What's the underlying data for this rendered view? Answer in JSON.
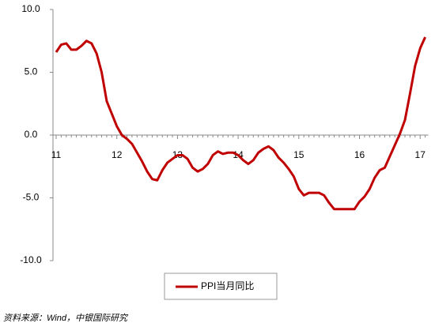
{
  "chart_data": {
    "type": "line",
    "categories": [
      "11",
      null,
      null,
      null,
      null,
      null,
      null,
      null,
      null,
      null,
      null,
      null,
      "12",
      null,
      null,
      null,
      null,
      null,
      null,
      null,
      null,
      null,
      null,
      null,
      "13",
      null,
      null,
      null,
      null,
      null,
      null,
      null,
      null,
      null,
      null,
      null,
      "14",
      null,
      null,
      null,
      null,
      null,
      null,
      null,
      null,
      null,
      null,
      null,
      "15",
      null,
      null,
      null,
      null,
      null,
      null,
      null,
      null,
      null,
      null,
      null,
      "16",
      null,
      null,
      null,
      null,
      null,
      null,
      null,
      null,
      null,
      null,
      null,
      "17",
      null
    ],
    "series": [
      {
        "name": "PPI当月同比",
        "color": "#c00000",
        "values": [
          6.6,
          7.2,
          7.3,
          6.8,
          6.8,
          7.1,
          7.5,
          7.3,
          6.5,
          5.0,
          2.7,
          1.7,
          0.7,
          0.0,
          -0.3,
          -0.7,
          -1.4,
          -2.1,
          -2.9,
          -3.5,
          -3.6,
          -2.8,
          -2.2,
          -1.9,
          -1.6,
          -1.6,
          -1.9,
          -2.6,
          -2.9,
          -2.7,
          -2.3,
          -1.6,
          -1.3,
          -1.5,
          -1.4,
          -1.4,
          -1.6,
          -2.0,
          -2.3,
          -2.0,
          -1.4,
          -1.1,
          -0.9,
          -1.2,
          -1.8,
          -2.2,
          -2.7,
          -3.3,
          -4.3,
          -4.8,
          -4.6,
          -4.6,
          -4.6,
          -4.8,
          -5.4,
          -5.9,
          -5.9,
          -5.9,
          -5.9,
          -5.9,
          -5.3,
          -4.9,
          -4.3,
          -3.4,
          -2.8,
          -2.6,
          -1.7,
          -0.8,
          0.1,
          1.2,
          3.3,
          5.5,
          6.9,
          7.8
        ]
      }
    ],
    "ylim": [
      -10,
      10
    ],
    "yticks": [
      {
        "value": 10,
        "label": "10.0"
      },
      {
        "value": 5,
        "label": "5.0"
      },
      {
        "value": 0,
        "label": "0.0"
      },
      {
        "value": -5,
        "label": "-5.0"
      },
      {
        "value": -10,
        "label": "-10.0"
      }
    ],
    "grid": false,
    "legend": "bottom",
    "source": "资料来源：Wind，中银国际研究"
  }
}
